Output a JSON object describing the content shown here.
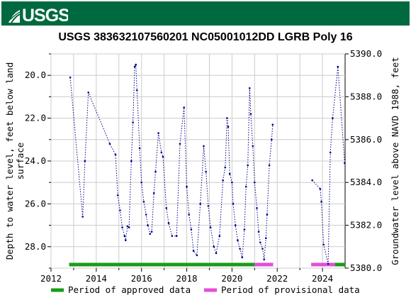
{
  "header": {
    "brand_text": "USGS",
    "brand_color": "#00693f"
  },
  "chart_data": {
    "type": "line",
    "title": "USGS 383632107560201 NC05001012DD LGRB Poly 16",
    "ylabel": "Depth to water level, feet below land surface",
    "ylabel_right": "Groundwater level above NAVD 1988, feet",
    "xlim": [
      2012,
      2025
    ],
    "ylim": [
      29.0,
      19.0
    ],
    "ylim_right": [
      5380.0,
      5390.0
    ],
    "x_ticks": [
      "2012",
      "2014",
      "2016",
      "2018",
      "2020",
      "2022",
      "2024"
    ],
    "y_ticks": [
      "20.0",
      "22.0",
      "24.0",
      "26.0",
      "28.0"
    ],
    "y_ticks_right": [
      "5380.0",
      "5382.0",
      "5384.0",
      "5386.0",
      "5388.0",
      "5390.0"
    ],
    "grid": true,
    "series": [
      {
        "name": "Depth to water level",
        "color": "#00008b",
        "segments": [
          [
            [
              2012.85,
              20.1
            ],
            [
              2013.4,
              26.6
            ],
            [
              2013.5,
              24.0
            ],
            [
              2013.65,
              20.8
            ],
            [
              2014.6,
              23.2
            ],
            [
              2014.85,
              23.7
            ],
            [
              2014.95,
              25.6
            ],
            [
              2015.05,
              26.3
            ],
            [
              2015.15,
              27.1
            ],
            [
              2015.25,
              27.5
            ],
            [
              2015.3,
              27.7
            ],
            [
              2015.38,
              27.05
            ],
            [
              2015.45,
              27.1
            ],
            [
              2015.55,
              24.0
            ],
            [
              2015.62,
              22.2
            ],
            [
              2015.7,
              19.6
            ],
            [
              2015.75,
              19.5
            ],
            [
              2015.8,
              20.7
            ],
            [
              2015.92,
              23.4
            ],
            [
              2016.0,
              25.0
            ],
            [
              2016.1,
              25.9
            ],
            [
              2016.2,
              26.5
            ],
            [
              2016.28,
              27.0
            ],
            [
              2016.38,
              27.4
            ],
            [
              2016.45,
              27.3
            ],
            [
              2016.55,
              25.5
            ],
            [
              2016.62,
              24.5
            ],
            [
              2016.75,
              22.7
            ],
            [
              2016.88,
              23.6
            ],
            [
              2016.95,
              23.8
            ],
            [
              2017.1,
              26.2
            ],
            [
              2017.2,
              26.9
            ],
            [
              2017.35,
              27.5
            ],
            [
              2017.55,
              27.5
            ],
            [
              2017.7,
              23.2
            ],
            [
              2017.88,
              21.5
            ],
            [
              2018.0,
              25.2
            ],
            [
              2018.1,
              26.5
            ],
            [
              2018.2,
              27.2
            ],
            [
              2018.3,
              28.2
            ],
            [
              2018.45,
              28.4
            ],
            [
              2018.6,
              26.0
            ],
            [
              2018.75,
              23.3
            ],
            [
              2018.85,
              24.5
            ],
            [
              2018.95,
              26.1
            ],
            [
              2019.05,
              27.1
            ],
            [
              2019.2,
              28.0
            ],
            [
              2019.3,
              28.3
            ],
            [
              2019.45,
              27.5
            ],
            [
              2019.6,
              24.9
            ],
            [
              2019.7,
              24.3
            ],
            [
              2019.78,
              22.0
            ],
            [
              2019.83,
              22.4
            ],
            [
              2019.9,
              24.6
            ],
            [
              2020.0,
              25.0
            ],
            [
              2020.05,
              26.0
            ],
            [
              2020.15,
              27.0
            ],
            [
              2020.25,
              27.7
            ],
            [
              2020.35,
              28.1
            ],
            [
              2020.45,
              28.5
            ],
            [
              2020.55,
              27.2
            ],
            [
              2020.62,
              25.2
            ],
            [
              2020.7,
              24.2
            ],
            [
              2020.78,
              20.6
            ],
            [
              2020.83,
              21.8
            ],
            [
              2020.92,
              23.3
            ],
            [
              2021.0,
              25.0
            ],
            [
              2021.1,
              26.2
            ],
            [
              2021.18,
              27.3
            ],
            [
              2021.25,
              27.8
            ],
            [
              2021.35,
              28.1
            ],
            [
              2021.42,
              28.6
            ],
            [
              2021.5,
              27.6
            ],
            [
              2021.55,
              26.5
            ],
            [
              2021.65,
              24.2
            ],
            [
              2021.75,
              23.0
            ],
            [
              2021.8,
              22.3
            ]
          ],
          [
            [
              2023.55,
              24.9
            ],
            [
              2023.9,
              25.3
            ],
            [
              2023.95,
              25.9
            ],
            [
              2024.05,
              27.9
            ],
            [
              2024.25,
              28.8
            ],
            [
              2024.35,
              23.6
            ],
            [
              2024.45,
              22.0
            ],
            [
              2024.68,
              19.6
            ],
            [
              2024.98,
              24.1
            ]
          ]
        ]
      }
    ],
    "legend": {
      "placement": "bottom",
      "items": [
        {
          "label": "Period of approved data",
          "color": "#1a9b1a"
        },
        {
          "label": "Period of provisional data",
          "color": "#e34ed6"
        }
      ]
    },
    "periods": [
      {
        "type": "approved",
        "start": 2012.8,
        "end": 2021.0,
        "color": "#1a9b1a"
      },
      {
        "type": "provisional",
        "start": 2021.0,
        "end": 2021.82,
        "color": "#e34ed6"
      },
      {
        "type": "provisional",
        "start": 2023.5,
        "end": 2024.55,
        "color": "#e34ed6"
      },
      {
        "type": "approved",
        "start": 2024.55,
        "end": 2025.0,
        "color": "#1a9b1a"
      }
    ]
  }
}
